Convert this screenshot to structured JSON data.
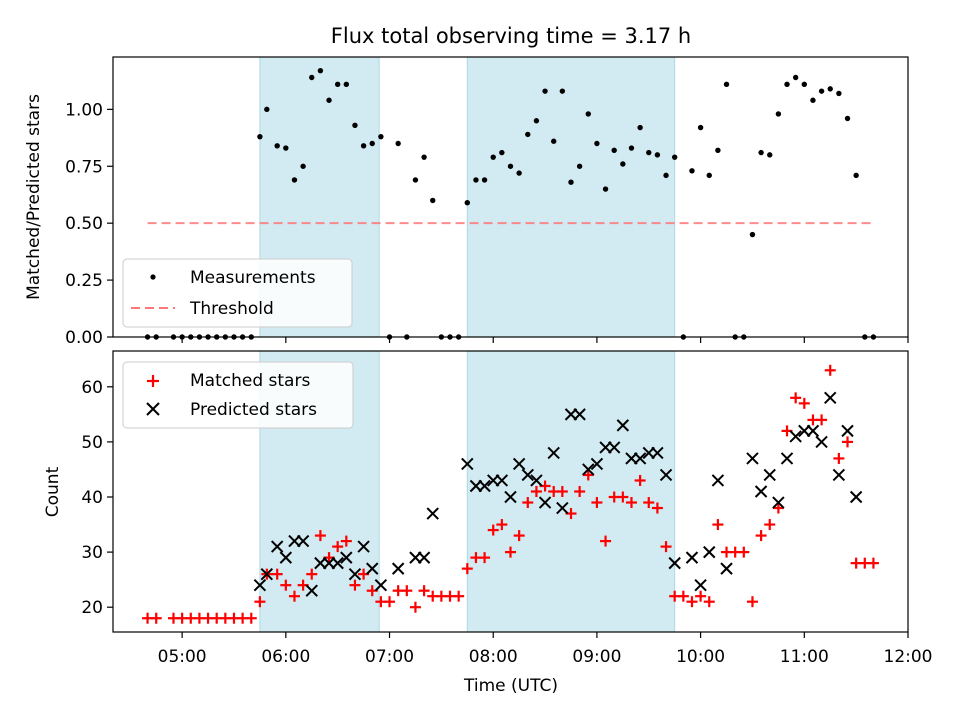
{
  "chart_data": [
    {
      "type": "scatter",
      "title": "Flux total observing time = 3.17 h",
      "xlabel": "",
      "ylabel": "Matched/Predicted stars",
      "xlim": [
        "04:20",
        "12:00"
      ],
      "ylim": [
        0,
        1.23
      ],
      "yticks": [
        0.0,
        0.25,
        0.5,
        0.75,
        1.0
      ],
      "ytick_labels": [
        "0.00",
        "0.25",
        "0.50",
        "0.75",
        "1.00"
      ],
      "grid": false,
      "legend_position": "lower-left",
      "shaded_intervals": [
        [
          "05:45",
          "06:54"
        ],
        [
          "07:45",
          "09:45"
        ]
      ],
      "threshold": {
        "name": "Threshold",
        "value": 0.5,
        "x_range": [
          "04:40",
          "11:40"
        ],
        "color": "#ff7777",
        "style": "dashed"
      },
      "series": [
        {
          "name": "Measurements",
          "marker": "dot",
          "color": "#000000",
          "points": [
            [
              "04:40",
              0
            ],
            [
              "04:45",
              0
            ],
            [
              "04:55",
              0
            ],
            [
              "05:00",
              0
            ],
            [
              "05:05",
              0
            ],
            [
              "05:10",
              0
            ],
            [
              "05:15",
              0
            ],
            [
              "05:20",
              0
            ],
            [
              "05:25",
              0
            ],
            [
              "05:30",
              0
            ],
            [
              "05:35",
              0
            ],
            [
              "05:40",
              0
            ],
            [
              "05:45",
              0.88
            ],
            [
              "05:49",
              1.0
            ],
            [
              "05:55",
              0.84
            ],
            [
              "06:00",
              0.83
            ],
            [
              "06:05",
              0.69
            ],
            [
              "06:10",
              0.75
            ],
            [
              "06:15",
              1.14
            ],
            [
              "06:20",
              1.17
            ],
            [
              "06:25",
              1.04
            ],
            [
              "06:30",
              1.11
            ],
            [
              "06:35",
              1.11
            ],
            [
              "06:40",
              0.93
            ],
            [
              "06:45",
              0.84
            ],
            [
              "06:50",
              0.85
            ],
            [
              "06:55",
              0.88
            ],
            [
              "07:00",
              0
            ],
            [
              "07:05",
              0.85
            ],
            [
              "07:10",
              0
            ],
            [
              "07:15",
              0.69
            ],
            [
              "07:20",
              0.79
            ],
            [
              "07:25",
              0.6
            ],
            [
              "07:30",
              0
            ],
            [
              "07:35",
              0
            ],
            [
              "07:40",
              0
            ],
            [
              "07:45",
              0.59
            ],
            [
              "07:50",
              0.69
            ],
            [
              "07:55",
              0.69
            ],
            [
              "08:00",
              0.79
            ],
            [
              "08:05",
              0.81
            ],
            [
              "08:10",
              0.75
            ],
            [
              "08:15",
              0.72
            ],
            [
              "08:20",
              0.89
            ],
            [
              "08:25",
              0.95
            ],
            [
              "08:30",
              1.08
            ],
            [
              "08:35",
              0.86
            ],
            [
              "08:40",
              1.08
            ],
            [
              "08:45",
              0.68
            ],
            [
              "08:50",
              0.75
            ],
            [
              "08:55",
              0.98
            ],
            [
              "09:00",
              0.85
            ],
            [
              "09:05",
              0.65
            ],
            [
              "09:10",
              0.82
            ],
            [
              "09:15",
              0.76
            ],
            [
              "09:20",
              0.83
            ],
            [
              "09:25",
              0.92
            ],
            [
              "09:30",
              0.81
            ],
            [
              "09:35",
              0.8
            ],
            [
              "09:40",
              0.71
            ],
            [
              "09:45",
              0.79
            ],
            [
              "09:50",
              0
            ],
            [
              "09:55",
              0.73
            ],
            [
              "10:00",
              0.92
            ],
            [
              "10:05",
              0.71
            ],
            [
              "10:10",
              0.82
            ],
            [
              "10:15",
              1.11
            ],
            [
              "10:20",
              0
            ],
            [
              "10:25",
              0
            ],
            [
              "10:30",
              0.45
            ],
            [
              "10:35",
              0.81
            ],
            [
              "10:40",
              0.8
            ],
            [
              "10:45",
              0.98
            ],
            [
              "10:50",
              1.11
            ],
            [
              "10:55",
              1.14
            ],
            [
              "11:00",
              1.11
            ],
            [
              "11:05",
              1.04
            ],
            [
              "11:10",
              1.08
            ],
            [
              "11:15",
              1.09
            ],
            [
              "11:20",
              1.07
            ],
            [
              "11:25",
              0.96
            ],
            [
              "11:30",
              0.71
            ],
            [
              "11:35",
              0
            ],
            [
              "11:40",
              0
            ]
          ]
        }
      ]
    },
    {
      "type": "scatter",
      "title": "",
      "xlabel": "Time (UTC)",
      "ylabel": "Count",
      "xlim": [
        "04:20",
        "12:00"
      ],
      "xticks": [
        "05:00",
        "06:00",
        "07:00",
        "08:00",
        "09:00",
        "10:00",
        "11:00",
        "12:00"
      ],
      "ylim": [
        15.5,
        66.5
      ],
      "yticks": [
        20,
        30,
        40,
        50,
        60
      ],
      "grid": false,
      "legend_position": "upper-left",
      "shaded_intervals": [
        [
          "05:45",
          "06:54"
        ],
        [
          "07:45",
          "09:45"
        ]
      ],
      "series": [
        {
          "name": "Matched stars",
          "marker": "plus",
          "color": "#ff0000",
          "points": [
            [
              "04:40",
              18
            ],
            [
              "04:45",
              18
            ],
            [
              "04:55",
              18
            ],
            [
              "05:00",
              18
            ],
            [
              "05:05",
              18
            ],
            [
              "05:10",
              18
            ],
            [
              "05:15",
              18
            ],
            [
              "05:20",
              18
            ],
            [
              "05:25",
              18
            ],
            [
              "05:30",
              18
            ],
            [
              "05:35",
              18
            ],
            [
              "05:40",
              18
            ],
            [
              "05:45",
              21
            ],
            [
              "05:49",
              26
            ],
            [
              "05:55",
              26
            ],
            [
              "06:00",
              24
            ],
            [
              "06:05",
              22
            ],
            [
              "06:10",
              24
            ],
            [
              "06:15",
              26
            ],
            [
              "06:20",
              33
            ],
            [
              "06:25",
              29
            ],
            [
              "06:30",
              31
            ],
            [
              "06:35",
              32
            ],
            [
              "06:40",
              24
            ],
            [
              "06:45",
              26
            ],
            [
              "06:50",
              23
            ],
            [
              "06:55",
              21
            ],
            [
              "07:00",
              21
            ],
            [
              "07:05",
              23
            ],
            [
              "07:10",
              23
            ],
            [
              "07:15",
              20
            ],
            [
              "07:20",
              23
            ],
            [
              "07:25",
              22
            ],
            [
              "07:30",
              22
            ],
            [
              "07:35",
              22
            ],
            [
              "07:40",
              22
            ],
            [
              "07:45",
              27
            ],
            [
              "07:50",
              29
            ],
            [
              "07:55",
              29
            ],
            [
              "08:00",
              34
            ],
            [
              "08:05",
              35
            ],
            [
              "08:10",
              30
            ],
            [
              "08:15",
              33
            ],
            [
              "08:20",
              39
            ],
            [
              "08:25",
              41
            ],
            [
              "08:30",
              42
            ],
            [
              "08:35",
              41
            ],
            [
              "08:40",
              41
            ],
            [
              "08:45",
              37
            ],
            [
              "08:50",
              41
            ],
            [
              "08:55",
              44
            ],
            [
              "09:00",
              39
            ],
            [
              "09:05",
              32
            ],
            [
              "09:10",
              40
            ],
            [
              "09:15",
              40
            ],
            [
              "09:20",
              39
            ],
            [
              "09:25",
              43
            ],
            [
              "09:30",
              39
            ],
            [
              "09:35",
              38
            ],
            [
              "09:40",
              31
            ],
            [
              "09:45",
              22
            ],
            [
              "09:50",
              22
            ],
            [
              "09:55",
              21
            ],
            [
              "10:00",
              22
            ],
            [
              "10:05",
              21
            ],
            [
              "10:10",
              35
            ],
            [
              "10:15",
              30
            ],
            [
              "10:20",
              30
            ],
            [
              "10:25",
              30
            ],
            [
              "10:30",
              21
            ],
            [
              "10:35",
              33
            ],
            [
              "10:40",
              35
            ],
            [
              "10:45",
              38
            ],
            [
              "10:50",
              52
            ],
            [
              "10:55",
              58
            ],
            [
              "11:00",
              57
            ],
            [
              "11:05",
              54
            ],
            [
              "11:10",
              54
            ],
            [
              "11:15",
              63
            ],
            [
              "11:20",
              47
            ],
            [
              "11:25",
              50
            ],
            [
              "11:30",
              28
            ],
            [
              "11:35",
              28
            ],
            [
              "11:40",
              28
            ]
          ]
        },
        {
          "name": "Predicted stars",
          "marker": "x",
          "color": "#000000",
          "points": [
            [
              "05:45",
              24
            ],
            [
              "05:49",
              26
            ],
            [
              "05:55",
              31
            ],
            [
              "06:00",
              29
            ],
            [
              "06:05",
              32
            ],
            [
              "06:10",
              32
            ],
            [
              "06:15",
              23
            ],
            [
              "06:20",
              28
            ],
            [
              "06:25",
              28
            ],
            [
              "06:30",
              28
            ],
            [
              "06:35",
              29
            ],
            [
              "06:40",
              26
            ],
            [
              "06:45",
              31
            ],
            [
              "06:50",
              27
            ],
            [
              "06:55",
              24
            ],
            [
              "07:05",
              27
            ],
            [
              "07:15",
              29
            ],
            [
              "07:20",
              29
            ],
            [
              "07:25",
              37
            ],
            [
              "07:45",
              46
            ],
            [
              "07:50",
              42
            ],
            [
              "07:55",
              42
            ],
            [
              "08:00",
              43
            ],
            [
              "08:05",
              43
            ],
            [
              "08:10",
              40
            ],
            [
              "08:15",
              46
            ],
            [
              "08:20",
              44
            ],
            [
              "08:25",
              43
            ],
            [
              "08:30",
              39
            ],
            [
              "08:35",
              48
            ],
            [
              "08:40",
              38
            ],
            [
              "08:45",
              55
            ],
            [
              "08:50",
              55
            ],
            [
              "08:55",
              45
            ],
            [
              "09:00",
              46
            ],
            [
              "09:05",
              49
            ],
            [
              "09:10",
              49
            ],
            [
              "09:15",
              53
            ],
            [
              "09:20",
              47
            ],
            [
              "09:25",
              47
            ],
            [
              "09:30",
              48
            ],
            [
              "09:35",
              48
            ],
            [
              "09:40",
              44
            ],
            [
              "09:45",
              28
            ],
            [
              "09:55",
              29
            ],
            [
              "10:00",
              24
            ],
            [
              "10:05",
              30
            ],
            [
              "10:10",
              43
            ],
            [
              "10:15",
              27
            ],
            [
              "10:30",
              47
            ],
            [
              "10:35",
              41
            ],
            [
              "10:40",
              44
            ],
            [
              "10:45",
              39
            ],
            [
              "10:50",
              47
            ],
            [
              "10:55",
              51
            ],
            [
              "11:00",
              52
            ],
            [
              "11:05",
              52
            ],
            [
              "11:10",
              50
            ],
            [
              "11:15",
              58
            ],
            [
              "11:20",
              44
            ],
            [
              "11:25",
              52
            ],
            [
              "11:30",
              40
            ]
          ]
        }
      ]
    }
  ],
  "colors": {
    "shade": "#add8e6",
    "measurement": "#000000",
    "threshold": "#ff7777",
    "matched": "#ff0000",
    "predicted": "#000000"
  }
}
